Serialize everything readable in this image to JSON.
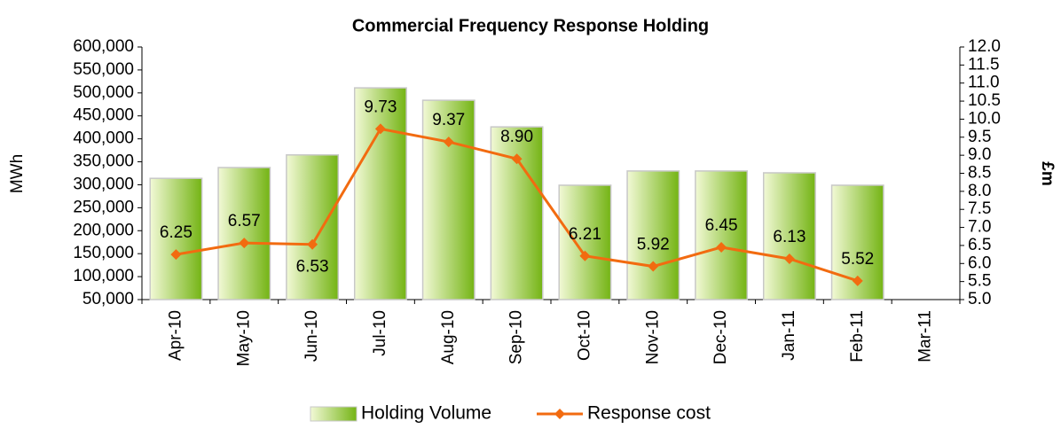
{
  "chart_data": {
    "type": "bar_line",
    "title": "Commercial Frequency Response Holding",
    "y_label": "MWh",
    "y2_label": "£m",
    "categories": [
      "Apr-10",
      "May-10",
      "Jun-10",
      "Jul-10",
      "Aug-10",
      "Sep-10",
      "Oct-10",
      "Nov-10",
      "Dec-10",
      "Jan-11",
      "Feb-11",
      "Mar-11"
    ],
    "series": [
      {
        "name": "Holding Volume",
        "color": "#8cc21e",
        "type": "bar",
        "axis": "y",
        "values": [
          314000,
          337500,
          365000,
          511000,
          484000,
          426000,
          299000,
          330000,
          330000,
          326000,
          299000,
          null
        ]
      },
      {
        "name": "Response cost",
        "color": "#f26b10",
        "type": "line",
        "axis": "y2",
        "values": [
          6.25,
          6.57,
          6.53,
          9.73,
          9.37,
          8.9,
          6.21,
          5.92,
          6.45,
          6.13,
          5.52,
          null
        ],
        "value_labels": [
          "6.25",
          "6.57",
          "6.53",
          "9.73",
          "9.37",
          "8.90",
          "6.21",
          "5.92",
          "6.45",
          "6.13",
          "5.52",
          null
        ]
      }
    ],
    "ylim": [
      50000,
      600000
    ],
    "yticks": [
      {
        "value": 50000,
        "label": "50,000"
      },
      {
        "value": 100000,
        "label": "100,000"
      },
      {
        "value": 150000,
        "label": "150,000"
      },
      {
        "value": 200000,
        "label": "200,000"
      },
      {
        "value": 250000,
        "label": "250,000"
      },
      {
        "value": 300000,
        "label": "300,000"
      },
      {
        "value": 350000,
        "label": "350,000"
      },
      {
        "value": 400000,
        "label": "400,000"
      },
      {
        "value": 450000,
        "label": "450,000"
      },
      {
        "value": 500000,
        "label": "500,000"
      },
      {
        "value": 550000,
        "label": "550,000"
      },
      {
        "value": 600000,
        "label": "600,000"
      }
    ],
    "y2lim": [
      5,
      12
    ],
    "y2ticks": [
      {
        "value": 5,
        "label": "5.0"
      },
      5.5,
      {
        "value": 6,
        "label": "6.0"
      },
      6.5,
      {
        "value": 7,
        "label": "7.0"
      },
      7.5,
      {
        "value": 8,
        "label": "8.0"
      },
      8.5,
      {
        "value": 9,
        "label": "9.0"
      },
      9.5,
      {
        "value": 10,
        "label": "10.0"
      },
      10.5,
      {
        "value": 11,
        "label": "11.0"
      },
      11.5,
      {
        "value": 12,
        "label": "12.0"
      }
    ],
    "legend": "bottom"
  }
}
